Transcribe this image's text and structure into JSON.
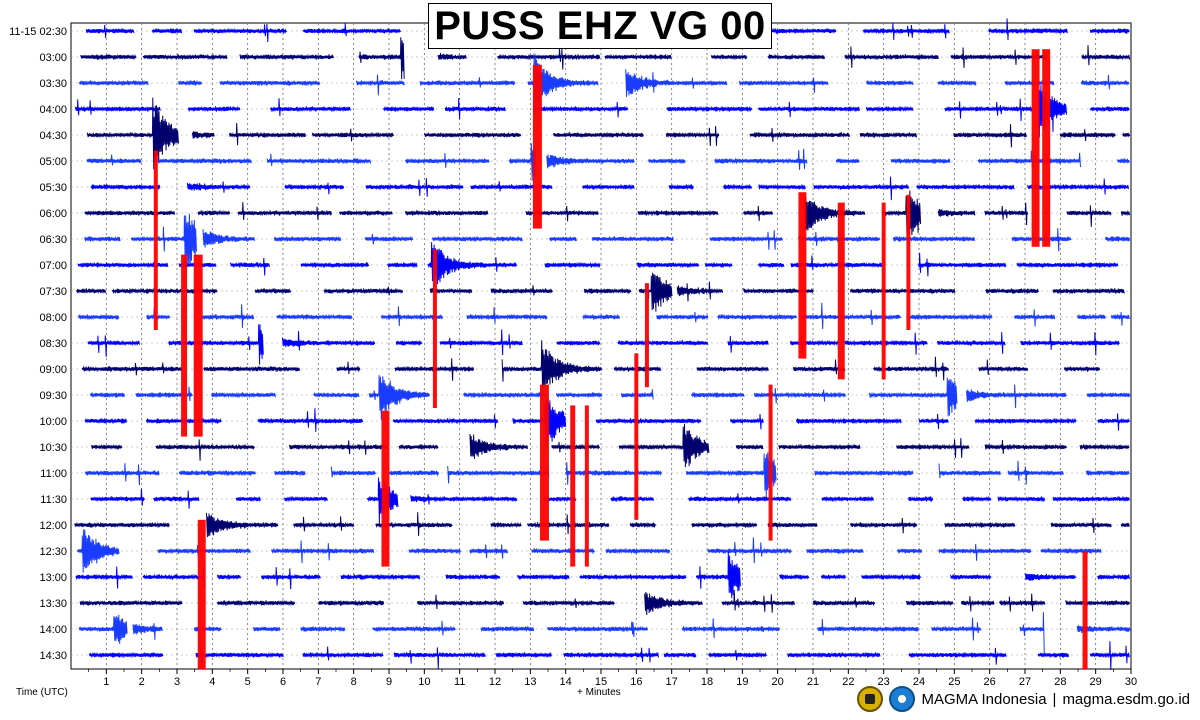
{
  "chart_data": {
    "type": "seismogram",
    "title": "PUSS EHZ VG 00",
    "date_label": "11-15",
    "xlabel": "+ Minutes",
    "ylabel": "Time (UTC)",
    "x_ticks": [
      "1",
      "2",
      "3",
      "4",
      "5",
      "6",
      "7",
      "8",
      "9",
      "10",
      "11",
      "12",
      "13",
      "14",
      "15",
      "16",
      "17",
      "18",
      "19",
      "20",
      "21",
      "22",
      "23",
      "24",
      "25",
      "26",
      "27",
      "28",
      "29",
      "30"
    ],
    "xlim": [
      0,
      30
    ],
    "row_labels": [
      "11-15 02:30",
      "03:00",
      "03:30",
      "04:00",
      "04:30",
      "05:00",
      "05:30",
      "06:00",
      "06:30",
      "07:00",
      "07:30",
      "08:00",
      "08:30",
      "09:00",
      "09:30",
      "10:00",
      "10:30",
      "11:00",
      "11:30",
      "12:00",
      "12:30",
      "13:00",
      "13:30",
      "14:00",
      "14:30"
    ],
    "trace_colors": [
      "#0000ff",
      "#00006e",
      "#1a3cff"
    ],
    "clip_color": "#ff0000",
    "grid": "dotted",
    "events": [
      {
        "row": 1,
        "minute": 9.3,
        "amp": 1.2
      },
      {
        "row": 2,
        "minute": 13.1,
        "amp": 1.4
      },
      {
        "row": 2,
        "minute": 15.4,
        "amp": 1.5
      },
      {
        "row": 3,
        "minute": 27.2,
        "amp": 2.0
      },
      {
        "row": 4,
        "minute": 2.3,
        "amp": 1.8
      },
      {
        "row": 5,
        "minute": 13.0,
        "amp": 0.9
      },
      {
        "row": 6,
        "minute": 2.5,
        "amp": 1.0
      },
      {
        "row": 7,
        "minute": 20.6,
        "amp": 1.5
      },
      {
        "row": 7,
        "minute": 23.6,
        "amp": 1.4
      },
      {
        "row": 8,
        "minute": 3.2,
        "amp": 1.6
      },
      {
        "row": 9,
        "minute": 10.2,
        "amp": 1.2
      },
      {
        "row": 10,
        "minute": 16.4,
        "amp": 1.3
      },
      {
        "row": 12,
        "minute": 5.3,
        "amp": 0.9
      },
      {
        "row": 13,
        "minute": 13.3,
        "amp": 1.4
      },
      {
        "row": 14,
        "minute": 8.7,
        "amp": 1.3
      },
      {
        "row": 14,
        "minute": 24.8,
        "amp": 1.0
      },
      {
        "row": 15,
        "minute": 13.4,
        "amp": 1.4
      },
      {
        "row": 16,
        "minute": 11.0,
        "amp": 1.3
      },
      {
        "row": 16,
        "minute": 17.3,
        "amp": 1.2
      },
      {
        "row": 17,
        "minute": 19.6,
        "amp": 1.2
      },
      {
        "row": 18,
        "minute": 8.7,
        "amp": 1.1
      },
      {
        "row": 19,
        "minute": 3.4,
        "amp": 1.8
      },
      {
        "row": 20,
        "minute": 0.3,
        "amp": 1.2
      },
      {
        "row": 21,
        "minute": 18.6,
        "amp": 1.1
      },
      {
        "row": 21,
        "minute": 26.1,
        "amp": 1.5
      },
      {
        "row": 22,
        "minute": 16.0,
        "amp": 1.0
      },
      {
        "row": 23,
        "minute": 1.2,
        "amp": 0.9
      },
      {
        "row": 23,
        "minute": 27.5,
        "amp": 1.2
      }
    ],
    "clipped_spans": [
      {
        "minute": 2.4,
        "from_row": 4.6,
        "to_row": 11.5
      },
      {
        "minute": 3.2,
        "from_row": 8.6,
        "to_row": 15.6
      },
      {
        "minute": 3.6,
        "from_row": 8.6,
        "to_row": 15.6
      },
      {
        "minute": 27.3,
        "from_row": 0.7,
        "to_row": 8.3
      },
      {
        "minute": 27.6,
        "from_row": 0.7,
        "to_row": 8.3
      },
      {
        "minute": 13.2,
        "from_row": 1.3,
        "to_row": 7.6
      },
      {
        "minute": 10.3,
        "from_row": 8.4,
        "to_row": 14.5
      },
      {
        "minute": 16.3,
        "from_row": 9.7,
        "to_row": 13.7
      },
      {
        "minute": 16.0,
        "from_row": 12.4,
        "to_row": 18.8
      },
      {
        "minute": 20.7,
        "from_row": 6.2,
        "to_row": 12.6
      },
      {
        "minute": 21.8,
        "from_row": 6.6,
        "to_row": 13.4
      },
      {
        "minute": 23.0,
        "from_row": 6.6,
        "to_row": 13.4
      },
      {
        "minute": 23.7,
        "from_row": 6.3,
        "to_row": 11.5
      },
      {
        "minute": 8.9,
        "from_row": 14.6,
        "to_row": 20.6
      },
      {
        "minute": 13.4,
        "from_row": 13.6,
        "to_row": 19.6
      },
      {
        "minute": 14.2,
        "from_row": 14.4,
        "to_row": 20.6
      },
      {
        "minute": 14.6,
        "from_row": 14.4,
        "to_row": 20.6
      },
      {
        "minute": 19.8,
        "from_row": 13.6,
        "to_row": 19.6
      },
      {
        "minute": 3.7,
        "from_row": 18.8,
        "to_row": 24.8
      },
      {
        "minute": 28.7,
        "from_row": 20.0,
        "to_row": 24.8
      }
    ]
  },
  "footer": {
    "brand": "MAGMA Indonesia",
    "separator": "|",
    "url": "magma.esdm.go.id"
  }
}
